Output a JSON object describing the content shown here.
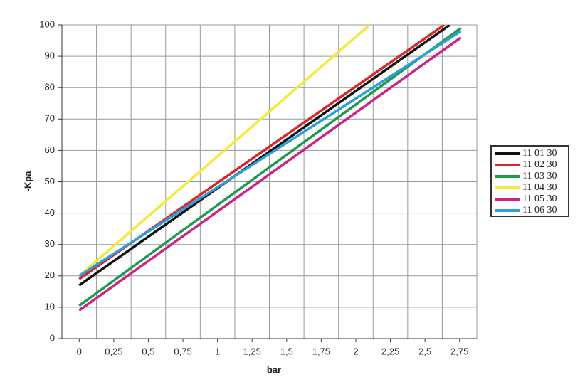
{
  "chart_data": {
    "type": "line",
    "x_label": "bar",
    "y_label": "-Kpa",
    "xlim": [
      -0.125,
      2.875
    ],
    "ylim": [
      0,
      100
    ],
    "xticks": [
      0,
      {
        "value": 0.25,
        "label": "0,25"
      },
      {
        "value": 0.5,
        "label": "0,5"
      },
      {
        "value": 0.75,
        "label": "0,75"
      },
      1,
      {
        "value": 1.25,
        "label": "1,25"
      },
      {
        "value": 1.5,
        "label": "1,5"
      },
      {
        "value": 1.75,
        "label": "1,75"
      },
      2,
      {
        "value": 2.25,
        "label": "2,25"
      },
      {
        "value": 2.5,
        "label": "2,5"
      },
      {
        "value": 2.75,
        "label": "2,75"
      }
    ],
    "yticks": [
      0,
      10,
      20,
      30,
      40,
      50,
      60,
      70,
      80,
      90,
      100
    ],
    "grid": true,
    "legend": "right",
    "series": [
      {
        "name": "11 01 30",
        "color": "#111111",
        "x": [
          0,
          2.68
        ],
        "values": [
          17,
          100
        ]
      },
      {
        "name": "11 02 30",
        "color": "#d9262b",
        "x": [
          0,
          2.64
        ],
        "values": [
          19,
          100
        ]
      },
      {
        "name": "11 03 30",
        "color": "#1f9a4d",
        "x": [
          0,
          2.76
        ],
        "values": [
          10.5,
          99
        ]
      },
      {
        "name": "11 04 30",
        "color": "#f2ea3c",
        "x": [
          0,
          2.1
        ],
        "values": [
          20,
          100
        ]
      },
      {
        "name": "11 05 30",
        "color": "#cc2288",
        "x": [
          0,
          2.76
        ],
        "values": [
          9,
          96
        ]
      },
      {
        "name": "11 06 30",
        "color": "#2b9fd9",
        "x": [
          0,
          2.76
        ],
        "values": [
          20,
          98
        ]
      }
    ]
  }
}
